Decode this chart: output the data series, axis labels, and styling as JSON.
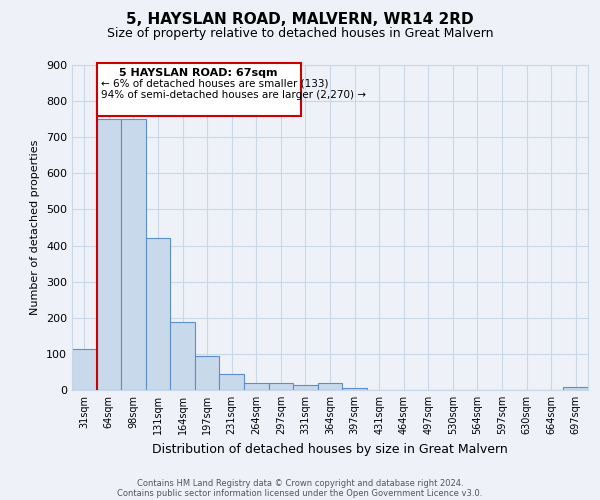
{
  "title": "5, HAYSLAN ROAD, MALVERN, WR14 2RD",
  "subtitle": "Size of property relative to detached houses in Great Malvern",
  "xlabel": "Distribution of detached houses by size in Great Malvern",
  "ylabel": "Number of detached properties",
  "bar_color": "#c9d9ec",
  "bar_edge_color": "#5b8fc9",
  "grid_color": "#c8d8e8",
  "background_color": "#eef2f8",
  "ylim": [
    0,
    900
  ],
  "yticks": [
    0,
    100,
    200,
    300,
    400,
    500,
    600,
    700,
    800,
    900
  ],
  "bin_labels": [
    "31sqm",
    "64sqm",
    "98sqm",
    "131sqm",
    "164sqm",
    "197sqm",
    "231sqm",
    "264sqm",
    "297sqm",
    "331sqm",
    "364sqm",
    "397sqm",
    "431sqm",
    "464sqm",
    "497sqm",
    "530sqm",
    "564sqm",
    "597sqm",
    "630sqm",
    "664sqm",
    "697sqm"
  ],
  "bar_heights": [
    113,
    750,
    750,
    420,
    188,
    95,
    43,
    20,
    20,
    15,
    20,
    5,
    0,
    0,
    0,
    0,
    0,
    0,
    0,
    0,
    7
  ],
  "property_line_label": "5 HAYSLAN ROAD: 67sqm",
  "annotation_line1": "← 6% of detached houses are smaller (133)",
  "annotation_line2": "94% of semi-detached houses are larger (2,270) →",
  "annotation_box_color": "#ffffff",
  "annotation_box_edge_color": "#cc0000",
  "vline_color": "#cc0000",
  "footer_line1": "Contains HM Land Registry data © Crown copyright and database right 2024.",
  "footer_line2": "Contains public sector information licensed under the Open Government Licence v3.0."
}
